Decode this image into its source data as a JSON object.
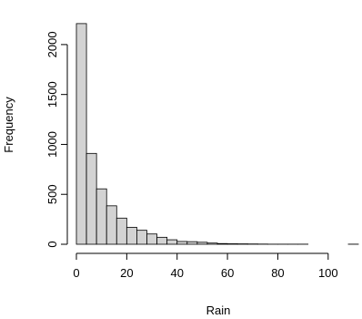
{
  "chart_data": {
    "type": "bar",
    "title": "",
    "xlabel": "Rain",
    "ylabel": "Frequency",
    "bin_width": 4,
    "bins_start": [
      0,
      4,
      8,
      12,
      16,
      20,
      24,
      28,
      32,
      36,
      40,
      44,
      48,
      52,
      56,
      60,
      64,
      68,
      72,
      76,
      80,
      84,
      88,
      92,
      96,
      100,
      104,
      108
    ],
    "values": [
      2210,
      910,
      555,
      385,
      262,
      170,
      140,
      103,
      70,
      45,
      28,
      26,
      20,
      12,
      7,
      5,
      4,
      3,
      2,
      1,
      1,
      1,
      1,
      0,
      0,
      0,
      0,
      1
    ],
    "xlim": [
      0,
      112
    ],
    "ylim": [
      0,
      2210
    ],
    "x_ticks": [
      0,
      20,
      40,
      60,
      80,
      100
    ],
    "y_ticks": [
      0,
      500,
      1000,
      1500,
      2000
    ],
    "grid": false,
    "legend": "none"
  }
}
